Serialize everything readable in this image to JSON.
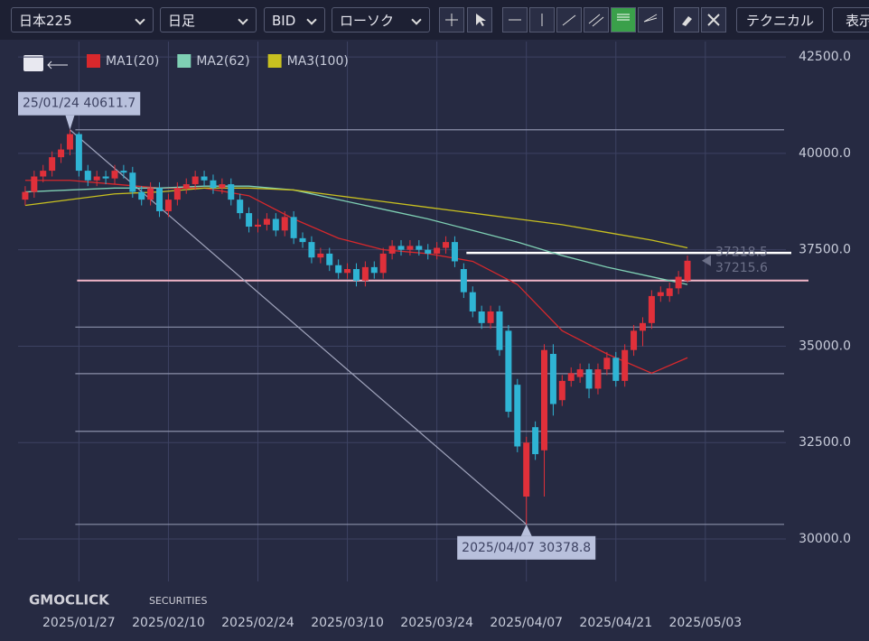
{
  "toolbar": {
    "symbol": "日本225",
    "period": "日足",
    "side": "BID",
    "chart_style": "ローソク",
    "technical": "テクニカル",
    "display": "表示"
  },
  "watermark": {
    "brand": "GMOCLICK",
    "suffix": "SECURITIES"
  },
  "chart_data": {
    "type": "candlestick",
    "up_color": "#e0303a",
    "down_color": "#2fb4d4",
    "open": [
      38800,
      39000,
      39400,
      39550,
      39900,
      40100,
      40500,
      39550,
      39300,
      39400,
      39350,
      39550,
      39500,
      39000,
      38800,
      39100,
      38500,
      38800,
      39100,
      39200,
      39400,
      39300,
      39100,
      39200,
      38800,
      38450,
      38100,
      38150,
      38300,
      38000,
      38350,
      37800,
      37700,
      37300,
      37400,
      37100,
      36900,
      37000,
      36700,
      37050,
      36900,
      37400,
      37600,
      37500,
      37600,
      37500,
      37400,
      37550,
      37700,
      37000,
      36400,
      35900,
      35600,
      35900,
      35400,
      34000,
      31100,
      32900,
      32300,
      34800,
      33600,
      34100,
      34200,
      34400,
      33900,
      34400,
      34700,
      34100,
      34900,
      35400,
      35600,
      36300,
      36300,
      36500,
      36700
    ],
    "high": [
      39150,
      39550,
      39700,
      40050,
      40250,
      40611.7,
      40550,
      39700,
      39550,
      39550,
      39700,
      39700,
      39650,
      39150,
      39250,
      39250,
      38950,
      39250,
      39350,
      39550,
      39550,
      39450,
      39350,
      39350,
      38950,
      38600,
      38300,
      38450,
      38450,
      38500,
      38500,
      37950,
      37850,
      37550,
      37550,
      37250,
      37150,
      37150,
      37200,
      37200,
      37550,
      37750,
      37750,
      37750,
      37750,
      37650,
      37700,
      37850,
      37850,
      37150,
      36550,
      36050,
      36050,
      36050,
      35550,
      34150,
      32650,
      33050,
      35050,
      35050,
      34250,
      34450,
      34550,
      34550,
      34550,
      34850,
      34850,
      35050,
      35550,
      35750,
      36450,
      36550,
      36650,
      36950,
      37350
    ],
    "low": [
      38650,
      38850,
      39250,
      39400,
      39750,
      39950,
      39400,
      39150,
      39150,
      39200,
      39200,
      39350,
      38850,
      38650,
      38650,
      38350,
      38350,
      38650,
      38950,
      39050,
      39150,
      38950,
      38950,
      38650,
      38300,
      37950,
      37950,
      38000,
      37850,
      37850,
      37650,
      37550,
      37150,
      37150,
      36950,
      36750,
      36750,
      36550,
      36550,
      36750,
      36750,
      37250,
      37350,
      37350,
      37350,
      37250,
      37250,
      37400,
      37050,
      36250,
      35750,
      35450,
      35450,
      34750,
      33150,
      32250,
      30378.8,
      32050,
      31100,
      33200,
      33450,
      33950,
      34050,
      33650,
      33750,
      34250,
      33950,
      33950,
      34750,
      35000,
      35450,
      36150,
      36150,
      36350,
      36650
    ],
    "close": [
      39000,
      39400,
      39550,
      39900,
      40100,
      40500,
      39550,
      39300,
      39400,
      39350,
      39550,
      39500,
      39000,
      38800,
      39100,
      38500,
      38800,
      39100,
      39200,
      39400,
      39300,
      39100,
      39200,
      38800,
      38450,
      38100,
      38150,
      38300,
      38000,
      38350,
      37800,
      37700,
      37300,
      37400,
      37100,
      36900,
      37000,
      36700,
      37050,
      36900,
      37400,
      37600,
      37500,
      37600,
      37500,
      37400,
      37550,
      37700,
      37200,
      36400,
      35900,
      35600,
      35900,
      34900,
      33300,
      32400,
      32500,
      32200,
      34900,
      33500,
      34100,
      34300,
      34400,
      33900,
      34400,
      34700,
      34100,
      34900,
      35400,
      35600,
      36300,
      36400,
      36500,
      36800,
      37215.6
    ],
    "series": [
      {
        "name": "MA1(20)",
        "color": "#d8282c",
        "x": [
          0,
          5,
          10,
          15,
          20,
          25,
          30,
          35,
          40,
          45,
          50,
          55,
          60,
          65,
          70,
          74
        ],
        "values": [
          39300,
          39300,
          39200,
          39100,
          39100,
          38900,
          38300,
          37800,
          37500,
          37400,
          37200,
          36600,
          35400,
          34800,
          34300,
          34700
        ]
      },
      {
        "name": "MA2(62)",
        "color": "#7fd0b4",
        "x": [
          0,
          5,
          10,
          15,
          20,
          25,
          30,
          35,
          40,
          45,
          50,
          55,
          60,
          65,
          70,
          74
        ],
        "values": [
          39000,
          39050,
          39100,
          39100,
          39150,
          39150,
          39050,
          38800,
          38550,
          38300,
          38000,
          37700,
          37350,
          37050,
          36800,
          36600
        ]
      },
      {
        "name": "MA3(100)",
        "color": "#c8c020",
        "x": [
          0,
          5,
          10,
          15,
          20,
          25,
          30,
          35,
          40,
          45,
          50,
          55,
          60,
          65,
          70,
          74
        ],
        "values": [
          38650,
          38800,
          38950,
          39000,
          39100,
          39100,
          39050,
          38900,
          38750,
          38600,
          38450,
          38300,
          38150,
          37950,
          37750,
          37550
        ]
      }
    ],
    "xlim": [
      -0.8,
      85
    ],
    "ylim": [
      28900,
      42900
    ],
    "yticks": [
      {
        "value": 42500,
        "label": "42500.0"
      },
      {
        "value": 40000,
        "label": "40000.0"
      },
      {
        "value": 37500,
        "label": "37500.0"
      },
      {
        "value": 35000,
        "label": "35000.0"
      },
      {
        "value": 32500,
        "label": "32500.0"
      },
      {
        "value": 30000,
        "label": "30000.0"
      }
    ],
    "xticks": [
      {
        "value": 6,
        "label": "2025/01/27"
      },
      {
        "value": 16,
        "label": "2025/02/10"
      },
      {
        "value": 26,
        "label": "2025/02/24"
      },
      {
        "value": 36,
        "label": "2025/03/10"
      },
      {
        "value": 46,
        "label": "2025/03/24"
      },
      {
        "value": 56,
        "label": "2025/04/07"
      },
      {
        "value": 66,
        "label": "2025/04/21"
      },
      {
        "value": 76,
        "label": "2025/05/03"
      }
    ],
    "grid": true,
    "fib_levels": [
      40611.7,
      35495,
      34288,
      32793,
      30378.8
    ],
    "support_line": {
      "value": 36702,
      "color": "#f2b6c8"
    },
    "resistance_line": {
      "value": 37420,
      "color": "#ffffff"
    },
    "trend_line": {
      "x": [
        5,
        56
      ],
      "values": [
        40611.7,
        30378.8
      ]
    },
    "annotations": [
      {
        "text": "25/01/24 40611.7",
        "x": 5,
        "value": 40611.7
      },
      {
        "text": "2025/04/07 30378.8",
        "x": 56,
        "value": 30378.8
      }
    ],
    "price_labels": [
      37218.5,
      37215.6
    ]
  }
}
